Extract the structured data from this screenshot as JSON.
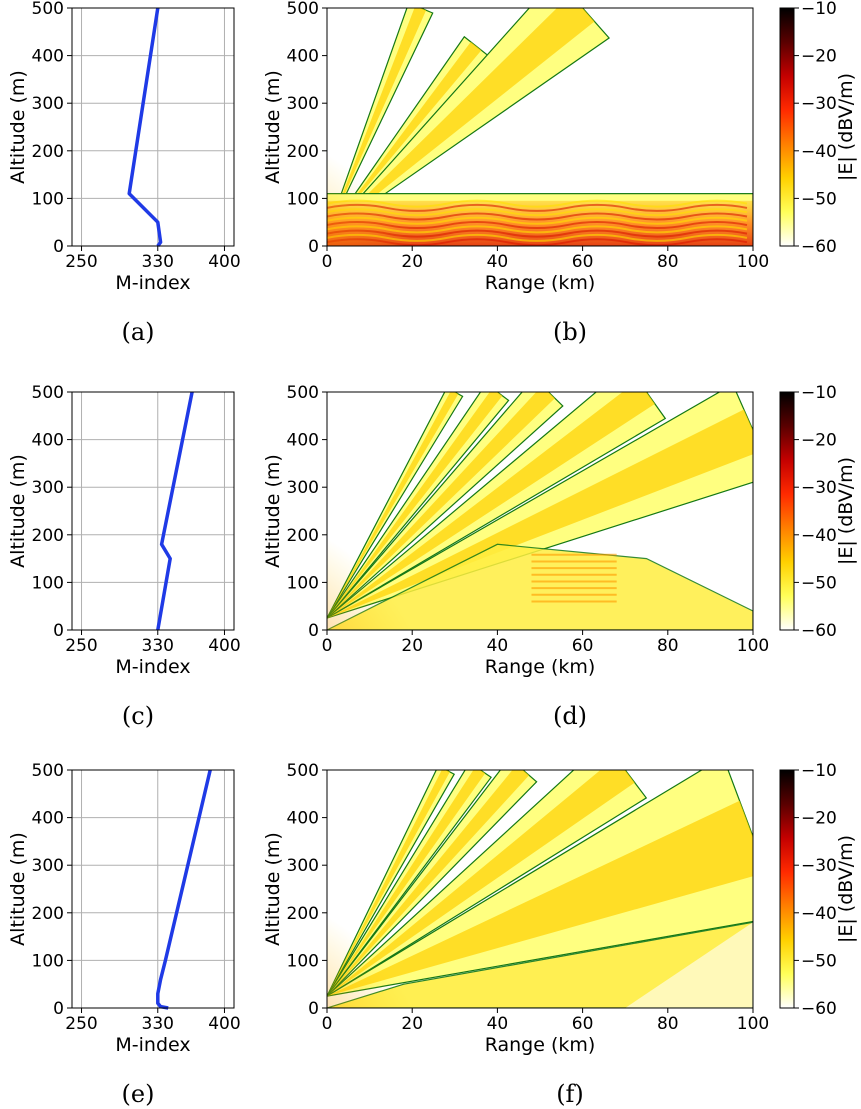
{
  "colors": {
    "profile_line": "#1f3ae6",
    "contour": "#147814",
    "grid": "#b0b0b0",
    "colormap_stops": [
      "#ffffff",
      "#ffff59",
      "#ffd000",
      "#ff7f00",
      "#ff2a00",
      "#c40000",
      "#5a0000",
      "#000000"
    ]
  },
  "chart_data": [
    {
      "type": "line",
      "panel": "(a)",
      "xlabel": "M-index",
      "ylabel": "Altitude (m)",
      "xlim": [
        240,
        410
      ],
      "ylim": [
        0,
        500
      ],
      "xticks": [
        250,
        330,
        400
      ],
      "yticks": [
        0,
        100,
        200,
        300,
        400,
        500
      ],
      "grid": true,
      "series": [
        {
          "x": [
            330,
            333,
            330,
            300,
            330
          ],
          "y": [
            0,
            8,
            50,
            110,
            500
          ]
        }
      ]
    },
    {
      "type": "heatmap",
      "panel": "(b)",
      "xlabel": "Range (km)",
      "ylabel": "Altitude (m)",
      "xlim": [
        0,
        100
      ],
      "ylim": [
        0,
        500
      ],
      "xticks": [
        0,
        20,
        40,
        60,
        80,
        100
      ],
      "yticks": [
        0,
        100,
        200,
        300,
        400,
        500
      ],
      "colorbar": {
        "label": "|E| (dBV/m)",
        "range": [
          -60,
          -10
        ],
        "ticks": [
          -10,
          -20,
          -30,
          -40,
          -50,
          -60
        ]
      }
    },
    {
      "type": "line",
      "panel": "(c)",
      "xlabel": "M-index",
      "ylabel": "Altitude (m)",
      "xlim": [
        240,
        410
      ],
      "ylim": [
        0,
        500
      ],
      "xticks": [
        250,
        330,
        400
      ],
      "yticks": [
        0,
        100,
        200,
        300,
        400,
        500
      ],
      "grid": true,
      "series": [
        {
          "x": [
            330,
            343,
            334,
            366
          ],
          "y": [
            0,
            150,
            180,
            500
          ]
        }
      ]
    },
    {
      "type": "heatmap",
      "panel": "(d)",
      "xlabel": "Range (km)",
      "ylabel": "Altitude (m)",
      "xlim": [
        0,
        100
      ],
      "ylim": [
        0,
        500
      ],
      "xticks": [
        0,
        20,
        40,
        60,
        80,
        100
      ],
      "yticks": [
        0,
        100,
        200,
        300,
        400,
        500
      ],
      "colorbar": {
        "label": "|E| (dBV/m)",
        "range": [
          -60,
          -10
        ],
        "ticks": [
          -10,
          -20,
          -30,
          -40,
          -50,
          -60
        ]
      }
    },
    {
      "type": "line",
      "panel": "(e)",
      "xlabel": "M-index",
      "ylabel": "Altitude (m)",
      "xlim": [
        240,
        410
      ],
      "ylim": [
        0,
        500
      ],
      "xticks": [
        250,
        330,
        400
      ],
      "yticks": [
        0,
        100,
        200,
        300,
        400,
        500
      ],
      "grid": true,
      "series": [
        {
          "x": [
            341,
            333,
            330,
            330,
            333,
            338,
            385
          ],
          "y": [
            0,
            3,
            10,
            30,
            60,
            100,
            500
          ]
        }
      ]
    },
    {
      "type": "heatmap",
      "panel": "(f)",
      "xlabel": "Range (km)",
      "ylabel": "Altitude (m)",
      "xlim": [
        0,
        100
      ],
      "ylim": [
        0,
        500
      ],
      "xticks": [
        0,
        20,
        40,
        60,
        80,
        100
      ],
      "yticks": [
        0,
        100,
        200,
        300,
        400,
        500
      ],
      "colorbar": {
        "label": "|E| (dBV/m)",
        "range": [
          -60,
          -10
        ],
        "ticks": [
          -10,
          -20,
          -30,
          -40,
          -50,
          -60
        ]
      }
    }
  ]
}
